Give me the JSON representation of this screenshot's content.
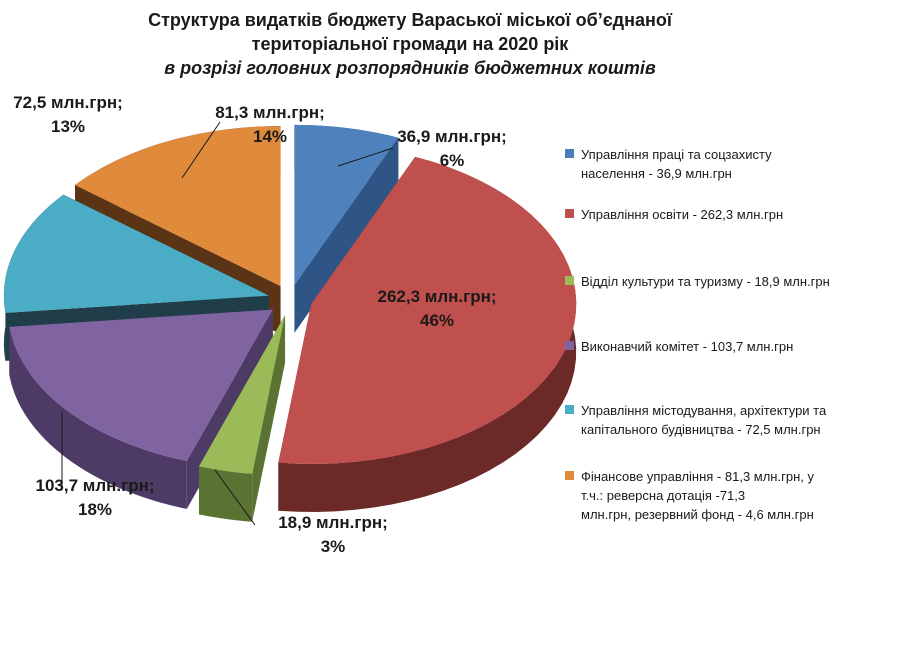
{
  "title": {
    "line1": "Структура видатків бюджету Вараської міської об’єднаної",
    "line2": "територіальної громади на 2020 рік",
    "line3": "в розрізі головних розпорядників  бюджетних коштів"
  },
  "chart_data": {
    "type": "pie",
    "three_d": true,
    "exploded": true,
    "unit": "млн.грн",
    "slices": [
      {
        "label_value": "36,9  млн.грн;",
        "label_pct": "6%",
        "value": 36.9,
        "percent": 6,
        "color": "#4a7ebb",
        "side": "#2f5586",
        "top": "#4f81bd",
        "legend": [
          "Управління праці та соцзахисту",
          "населення - 36,9 млн.грн"
        ]
      },
      {
        "label_value": "262,3  млн.грн;",
        "label_pct": "46%",
        "value": 262.3,
        "percent": 46,
        "color": "#c0504d",
        "side": "#6b2a28",
        "top": "#c0504d",
        "legend": [
          "Управління освіти - 262,3 млн.грн"
        ]
      },
      {
        "label_value": "18,9  млн.грн;",
        "label_pct": "3%",
        "value": 18.9,
        "percent": 3,
        "color": "#9bbb59",
        "side": "#5a7332",
        "top": "#9bbb59",
        "legend": [
          "Відділ культури та туризму - 18,9 млн.грн"
        ]
      },
      {
        "label_value": "103,7  млн.грн;",
        "label_pct": "18%",
        "value": 103.7,
        "percent": 18,
        "color": "#8064a2",
        "side": "#4d3b66",
        "top": "#8064a2",
        "legend": [
          "Виконавчий комітет - 103,7 млн.грн"
        ]
      },
      {
        "label_value": "72,5  млн.грн;",
        "label_pct": "13%",
        "value": 72.5,
        "percent": 13,
        "color": "#4bacc6",
        "side": "#1f3e4a",
        "top": "#4bacc6",
        "legend": [
          "Управління містодування, архітектури та",
          "капітального будівництва - 72,5 млн.грн"
        ]
      },
      {
        "label_value": "81,3  млн.грн;",
        "label_pct": "14%",
        "value": 81.3,
        "percent": 14,
        "color": "#e08a3c",
        "side": "#5a3414",
        "top": "#e08a3c",
        "legend": [
          "Фінансове управління - 81,3 млн.грн, у",
          "т.ч.: реверсна дотація -71,3",
          "млн.грн, резервний фонд - 4,6 млн.грн"
        ]
      }
    ]
  }
}
